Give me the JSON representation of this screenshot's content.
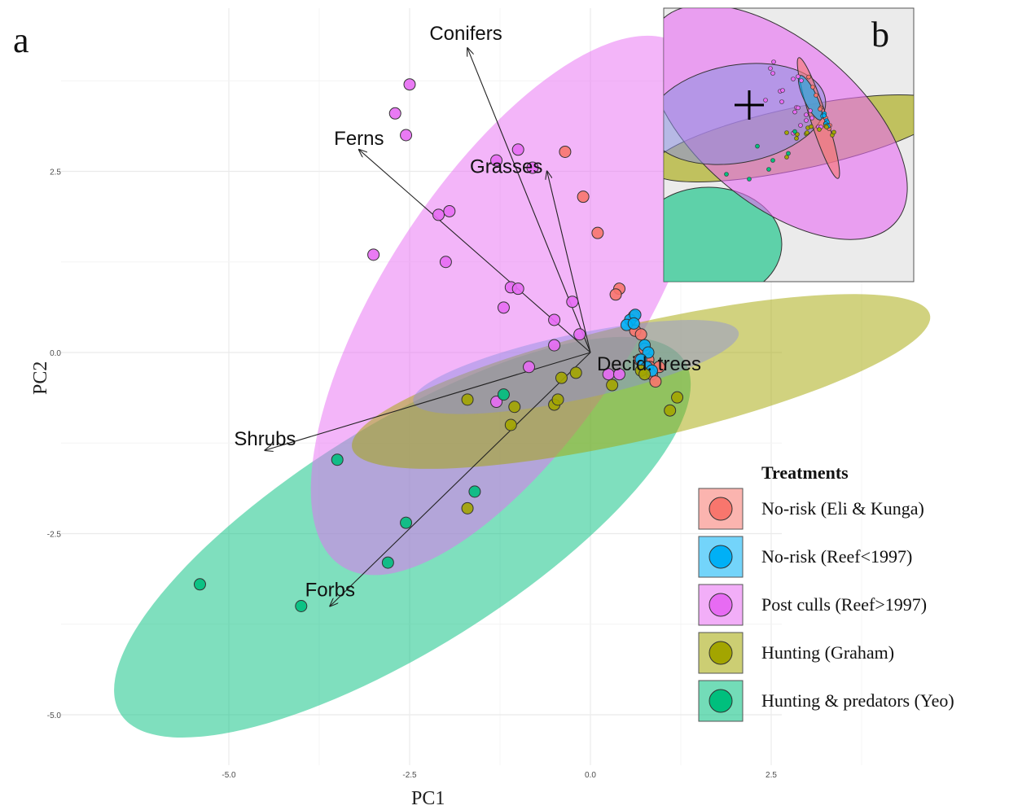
{
  "panel_labels": {
    "main": "a",
    "inset": "b"
  },
  "chart_data": {
    "type": "scatter",
    "subtype": "PCA biplot with confidence ellipses",
    "xlabel": "PC1",
    "ylabel": "PC2",
    "xlim": [
      -6.4,
      4.2
    ],
    "ylim": [
      -5.9,
      4.5
    ],
    "x_ticks": [
      -5.0,
      -2.5,
      0.0,
      2.5
    ],
    "x_tick_labels": [
      "-5.0",
      "-2.5",
      "0.0",
      "2.5"
    ],
    "y_ticks": [
      -5.0,
      -2.5,
      0.0,
      2.5
    ],
    "y_tick_labels": [
      "-5.0",
      "-2.5",
      "0.0",
      "2.5"
    ],
    "grid": true,
    "legend_title": "Treatments",
    "legend_position": "bottom-right",
    "series": [
      {
        "name": "No-risk (Eli & Kunga)",
        "color": "#f8766d",
        "ellipse": {
          "cx": 0.7,
          "cy": 0.3,
          "rx": 2.1,
          "ry": 0.15,
          "angle": 30
        },
        "points": [
          [
            -0.35,
            2.77
          ],
          [
            -0.1,
            2.15
          ],
          [
            0.1,
            1.65
          ],
          [
            0.4,
            0.88
          ],
          [
            0.35,
            0.8
          ],
          [
            0.6,
            0.5
          ],
          [
            0.62,
            0.3
          ],
          [
            0.7,
            0.25
          ],
          [
            0.75,
            0.05
          ],
          [
            0.8,
            -0.1
          ],
          [
            0.82,
            -0.2
          ],
          [
            0.85,
            -0.3
          ],
          [
            0.9,
            -0.4
          ],
          [
            0.68,
            -0.1
          ],
          [
            0.95,
            -0.2
          ]
        ]
      },
      {
        "name": "No-risk (Reef<1997)",
        "color": "#00b0f6",
        "ellipse": {
          "cx": 0.65,
          "cy": 0.1,
          "rx": 0.8,
          "ry": 0.12,
          "angle": 60
        },
        "points": [
          [
            0.55,
            0.45
          ],
          [
            0.5,
            0.38
          ],
          [
            0.62,
            0.52
          ],
          [
            0.6,
            0.4
          ],
          [
            0.75,
            0.1
          ],
          [
            0.8,
            0.0
          ],
          [
            0.7,
            -0.1
          ],
          [
            0.78,
            -0.2
          ],
          [
            0.85,
            -0.25
          ]
        ]
      },
      {
        "name": "Post culls (Reef>1997)",
        "color": "#e76bf3",
        "ellipse": {
          "cx": -1.1,
          "cy": 0.65,
          "rx": 4.3,
          "ry": 1.75,
          "angle": 57
        },
        "points": [
          [
            -2.5,
            3.7
          ],
          [
            -2.7,
            3.3
          ],
          [
            -2.55,
            3.0
          ],
          [
            -1.3,
            2.65
          ],
          [
            -1.0,
            2.8
          ],
          [
            -0.8,
            2.55
          ],
          [
            -2.1,
            1.9
          ],
          [
            -1.95,
            1.95
          ],
          [
            -3.0,
            1.35
          ],
          [
            -2.0,
            1.25
          ],
          [
            -1.1,
            0.9
          ],
          [
            -1.0,
            0.88
          ],
          [
            -1.2,
            0.62
          ],
          [
            -0.25,
            0.7
          ],
          [
            -0.5,
            0.45
          ],
          [
            -0.15,
            0.25
          ],
          [
            -0.5,
            0.1
          ],
          [
            -0.85,
            -0.2
          ],
          [
            -1.3,
            -0.68
          ],
          [
            0.25,
            -0.3
          ],
          [
            0.4,
            -0.3
          ]
        ]
      },
      {
        "name": "Hunting (Graham)",
        "color": "#a3a500",
        "ellipse": {
          "cx": 0.7,
          "cy": -0.4,
          "rx": 4.1,
          "ry": 0.8,
          "angle": 13
        },
        "points": [
          [
            -1.7,
            -0.65
          ],
          [
            -1.05,
            -0.75
          ],
          [
            -1.1,
            -1.0
          ],
          [
            -0.5,
            -0.72
          ],
          [
            -0.45,
            -0.65
          ],
          [
            -0.4,
            -0.35
          ],
          [
            -0.2,
            -0.28
          ],
          [
            0.3,
            -0.45
          ],
          [
            0.7,
            -0.25
          ],
          [
            0.75,
            -0.3
          ],
          [
            1.1,
            -0.8
          ],
          [
            1.2,
            -0.62
          ],
          [
            -1.7,
            -2.15
          ]
        ]
      },
      {
        "name": "Hunting & predators (Yeo)",
        "color": "#00bf7d",
        "ellipse": {
          "cx": -2.6,
          "cy": -2.55,
          "rx": 4.6,
          "ry": 1.55,
          "angle": 32
        },
        "points": [
          [
            -3.5,
            -1.48
          ],
          [
            -1.6,
            -1.92
          ],
          [
            -2.55,
            -2.35
          ],
          [
            -2.8,
            -2.9
          ],
          [
            -5.4,
            -3.2
          ],
          [
            -4.0,
            -3.5
          ],
          [
            -1.2,
            -0.58
          ]
        ]
      }
    ],
    "loadings": [
      {
        "label": "Conifers",
        "x": -1.7,
        "y": 4.2
      },
      {
        "label": "Ferns",
        "x": -3.2,
        "y": 2.8
      },
      {
        "label": "Grasses",
        "x": -0.6,
        "y": 2.5
      },
      {
        "label": "Decid. trees",
        "x": 0.0,
        "y": 0.0
      },
      {
        "label": "Shrubs",
        "x": -4.5,
        "y": -1.35
      },
      {
        "label": "Forbs",
        "x": -3.6,
        "y": -3.5
      }
    ],
    "inset": {
      "background": "#ebebeb",
      "marker": "+"
    }
  }
}
